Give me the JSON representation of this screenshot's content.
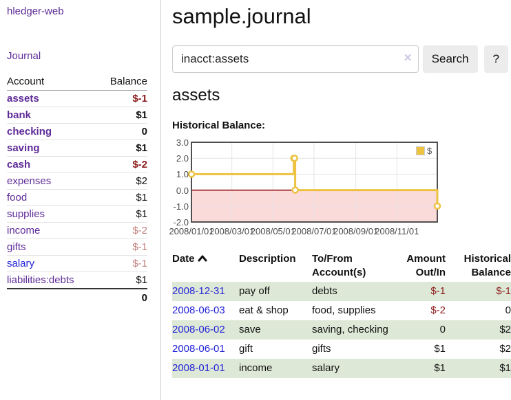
{
  "sidebar": {
    "brand": "hledger-web",
    "nav": {
      "journal": "Journal"
    },
    "accounts_table": {
      "headers": {
        "account": "Account",
        "balance": "Balance"
      },
      "rows": [
        {
          "name": "assets",
          "indent": 0,
          "balance": "$-1",
          "in_account": true,
          "balance_tone": "neg-strong"
        },
        {
          "name": "bank",
          "indent": 1,
          "balance": "$1",
          "in_account": true,
          "balance_tone": "pos"
        },
        {
          "name": "checking",
          "indent": 2,
          "balance": "0",
          "in_account": true,
          "balance_tone": "pos"
        },
        {
          "name": "saving",
          "indent": 2,
          "balance": "$1",
          "in_account": true,
          "balance_tone": "pos"
        },
        {
          "name": "cash",
          "indent": 1,
          "balance": "$-2",
          "in_account": true,
          "balance_tone": "neg-strong"
        },
        {
          "name": "expenses",
          "indent": 0,
          "balance": "$2",
          "in_account": false,
          "balance_tone": "pos"
        },
        {
          "name": "food",
          "indent": 1,
          "balance": "$1",
          "in_account": false,
          "balance_tone": "pos"
        },
        {
          "name": "supplies",
          "indent": 1,
          "balance": "$1",
          "in_account": false,
          "balance_tone": "pos"
        },
        {
          "name": "income",
          "indent": 0,
          "balance": "$-2",
          "in_account": false,
          "balance_tone": "neg-soft"
        },
        {
          "name": "gifts",
          "indent": 1,
          "balance": "$-1",
          "in_account": false,
          "balance_tone": "neg-soft"
        },
        {
          "name": "salary",
          "indent": 1,
          "balance": "$-1",
          "in_account": false,
          "balance_tone": "neg-soft",
          "link_color": "blue"
        },
        {
          "name": "liabilities:debts",
          "indent": 0,
          "balance": "$1",
          "in_account": false,
          "balance_tone": "pos"
        }
      ],
      "total": "0"
    }
  },
  "main": {
    "title": "sample.journal",
    "search": {
      "value": "inacct:assets",
      "clear_label": "×",
      "button_label": "Search",
      "help_label": "?"
    },
    "account_heading": "assets",
    "chart_heading": "Historical Balance:"
  },
  "chart_data": {
    "type": "line",
    "title": "Historical Balance",
    "x_range": [
      "2008-01-01",
      "2008-12-31"
    ],
    "ylim": [
      -2.0,
      3.0
    ],
    "yticks": [
      "3.0",
      "2.0",
      "1.0",
      "0.0",
      "-1.0",
      "-2.0"
    ],
    "ytick_values": [
      3,
      2,
      1,
      0,
      -1,
      -2
    ],
    "xticks": [
      "2008/01/01",
      "2008/03/01",
      "2008/05/01",
      "2008/07/01",
      "2008/09/01",
      "2008/11/01"
    ],
    "xtick_dates": [
      "2008-01-01",
      "2008-03-01",
      "2008-05-01",
      "2008-07-01",
      "2008-09-01",
      "2008-11-01"
    ],
    "step": "after",
    "series": [
      {
        "name": "$",
        "color": "#edc240",
        "points": [
          {
            "x": "2008-01-01",
            "y": 1
          },
          {
            "x": "2008-06-01",
            "y": 2
          },
          {
            "x": "2008-06-02",
            "y": 2
          },
          {
            "x": "2008-06-03",
            "y": 0
          },
          {
            "x": "2008-12-31",
            "y": -1
          }
        ]
      }
    ],
    "negative_region_fill": "#fbdada",
    "zero_line_color": "#8b0000",
    "grid_color": "#e4e4e4",
    "border_color": "#4f4f4f",
    "legend_position": "top-right"
  },
  "transactions": {
    "headers": {
      "date": "Date",
      "description": "Description",
      "tofrom": "To/From Account(s)",
      "amount": "Amount Out/In",
      "balance": "Historical Balance"
    },
    "sort": "date ascending",
    "rows": [
      {
        "date": "2008-12-31",
        "description": "pay off",
        "tofrom": "debts",
        "amount": "$-1",
        "balance": "$-1"
      },
      {
        "date": "2008-06-03",
        "description": "eat & shop",
        "tofrom": "food, supplies",
        "amount": "$-2",
        "balance": "0"
      },
      {
        "date": "2008-06-02",
        "description": "save",
        "tofrom": "saving, checking",
        "amount": "0",
        "balance": "$2"
      },
      {
        "date": "2008-06-01",
        "description": "gift",
        "tofrom": "gifts",
        "amount": "$1",
        "balance": "$2"
      },
      {
        "date": "2008-01-01",
        "description": "income",
        "tofrom": "salary",
        "amount": "$1",
        "balance": "$1"
      }
    ]
  },
  "colors": {
    "link_purple": "#5e2b97",
    "link_blue": "#2323d8",
    "negative_strong": "#8b1a1a",
    "negative_soft": "#bf7f7f",
    "row_green": "#dde8d6",
    "chart_gold": "#edc240"
  }
}
